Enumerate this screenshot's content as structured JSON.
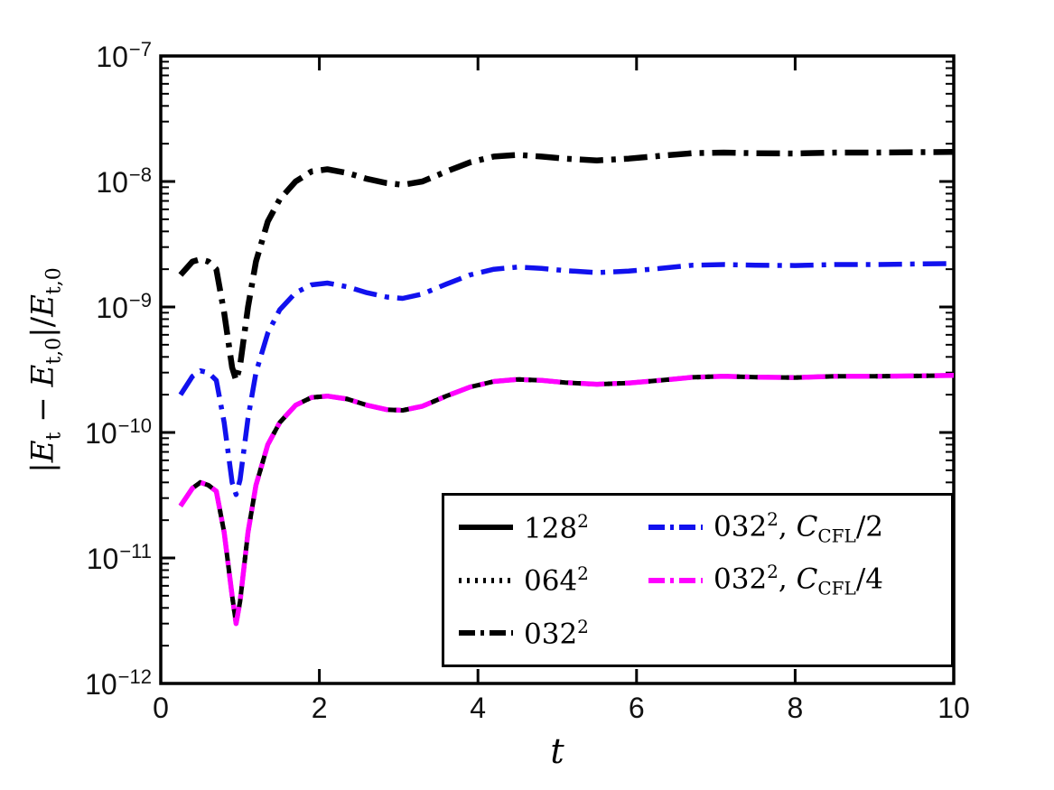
{
  "figure": {
    "background": "#ffffff",
    "frame_color": "#000000"
  },
  "chart_data": {
    "type": "line",
    "title": "",
    "xlabel": "t",
    "ylabel": "|E_t − E_t,0|/E_t,0",
    "ylabel_parts": [
      {
        "text": "|"
      },
      {
        "text": "E",
        "italic": true
      },
      {
        "text": "t",
        "sub": true
      },
      {
        "text": " − "
      },
      {
        "text": "E",
        "italic": true
      },
      {
        "text": "t,0",
        "sub": true
      },
      {
        "text": "|/"
      },
      {
        "text": "E",
        "italic": true
      },
      {
        "text": "t,0",
        "sub": true
      }
    ],
    "xlim": [
      0,
      10
    ],
    "ylog_lim": [
      -12,
      -7
    ],
    "xticks": [
      0,
      2,
      4,
      6,
      8,
      10
    ],
    "ytick_exponents": [
      -12,
      -11,
      -10,
      -9,
      -8,
      -7
    ],
    "ytick_base": "10",
    "grid": false,
    "legend_position": "south-east-inside",
    "x": [
      0.25,
      0.4,
      0.5,
      0.6,
      0.7,
      0.8,
      0.9,
      0.95,
      1.0,
      1.1,
      1.2,
      1.35,
      1.5,
      1.7,
      1.9,
      2.1,
      2.35,
      2.6,
      2.85,
      3.05,
      3.3,
      3.6,
      3.9,
      4.2,
      4.5,
      4.8,
      5.1,
      5.5,
      5.9,
      6.3,
      6.7,
      7.1,
      7.5,
      8.0,
      8.5,
      9.0,
      9.5,
      10.0
    ],
    "series": [
      {
        "id": "128sq",
        "name": "128^2",
        "color": "#000000",
        "line_style": "solid",
        "line_width": 5,
        "values": [
          2.6e-11,
          3.6e-11,
          4e-11,
          3.8e-11,
          3.4e-11,
          1.6e-11,
          5e-12,
          3e-12,
          4.5e-12,
          1.6e-11,
          3.8e-11,
          8e-11,
          1.2e-10,
          1.65e-10,
          1.9e-10,
          1.95e-10,
          1.85e-10,
          1.65e-10,
          1.52e-10,
          1.5e-10,
          1.62e-10,
          1.95e-10,
          2.3e-10,
          2.55e-10,
          2.65e-10,
          2.6e-10,
          2.5e-10,
          2.42e-10,
          2.48e-10,
          2.6e-10,
          2.75e-10,
          2.8e-10,
          2.76e-10,
          2.74e-10,
          2.8e-10,
          2.8e-10,
          2.82e-10,
          2.85e-10
        ]
      },
      {
        "id": "064sq",
        "name": "064^2",
        "color": "#000000",
        "line_style": "dotted",
        "line_width": 5,
        "values": [
          2.6e-11,
          3.6e-11,
          4e-11,
          3.8e-11,
          3.4e-11,
          1.6e-11,
          5e-12,
          3e-12,
          4.5e-12,
          1.6e-11,
          3.8e-11,
          8e-11,
          1.2e-10,
          1.65e-10,
          1.9e-10,
          1.95e-10,
          1.85e-10,
          1.65e-10,
          1.52e-10,
          1.5e-10,
          1.62e-10,
          1.95e-10,
          2.3e-10,
          2.55e-10,
          2.65e-10,
          2.6e-10,
          2.5e-10,
          2.42e-10,
          2.48e-10,
          2.6e-10,
          2.75e-10,
          2.8e-10,
          2.76e-10,
          2.74e-10,
          2.8e-10,
          2.8e-10,
          2.82e-10,
          2.85e-10
        ]
      },
      {
        "id": "032sq",
        "name": "032^2",
        "color": "#000000",
        "line_style": "dashdot",
        "line_width": 6.5,
        "values": [
          1.8e-09,
          2.3e-09,
          2.4e-09,
          2.3e-09,
          2e-09,
          9e-10,
          3.3e-10,
          2.6e-10,
          3.4e-10,
          1e-09,
          2.3e-09,
          4.8e-09,
          7.2e-09,
          1e-08,
          1.2e-08,
          1.25e-08,
          1.17e-08,
          1.05e-08,
          9.7e-09,
          9.4e-09,
          1e-08,
          1.2e-08,
          1.42e-08,
          1.58e-08,
          1.63e-08,
          1.58e-08,
          1.52e-08,
          1.47e-08,
          1.52e-08,
          1.6e-08,
          1.68e-08,
          1.7e-08,
          1.68e-08,
          1.67e-08,
          1.7e-08,
          1.7e-08,
          1.71e-08,
          1.72e-08
        ]
      },
      {
        "id": "032sq-cfl2",
        "name": "032^2, C_CFL/2",
        "color": "#1111ee",
        "line_style": "dashdot",
        "line_width": 5.5,
        "values": [
          2e-10,
          2.8e-10,
          3.1e-10,
          3e-10,
          2.6e-10,
          1.2e-10,
          4e-11,
          3.2e-11,
          4.2e-11,
          1.3e-10,
          3e-10,
          6.2e-10,
          9.5e-10,
          1.3e-09,
          1.5e-09,
          1.55e-09,
          1.45e-09,
          1.3e-09,
          1.2e-09,
          1.17e-09,
          1.27e-09,
          1.52e-09,
          1.8e-09,
          2e-09,
          2.08e-09,
          2.03e-09,
          1.95e-09,
          1.88e-09,
          1.93e-09,
          2.03e-09,
          2.15e-09,
          2.18e-09,
          2.15e-09,
          2.14e-09,
          2.18e-09,
          2.18e-09,
          2.2e-09,
          2.22e-09
        ]
      },
      {
        "id": "032sq-cfl4",
        "name": "032^2, C_CFL/4",
        "color": "#ff00ff",
        "line_style": "dashdot",
        "line_width": 5.5,
        "values": [
          2.6e-11,
          3.6e-11,
          4e-11,
          3.8e-11,
          3.4e-11,
          1.6e-11,
          5e-12,
          3e-12,
          4.5e-12,
          1.6e-11,
          3.8e-11,
          8e-11,
          1.2e-10,
          1.65e-10,
          1.9e-10,
          1.95e-10,
          1.85e-10,
          1.65e-10,
          1.52e-10,
          1.5e-10,
          1.62e-10,
          1.95e-10,
          2.3e-10,
          2.55e-10,
          2.65e-10,
          2.6e-10,
          2.5e-10,
          2.42e-10,
          2.48e-10,
          2.6e-10,
          2.75e-10,
          2.8e-10,
          2.76e-10,
          2.74e-10,
          2.8e-10,
          2.8e-10,
          2.82e-10,
          2.85e-10
        ]
      }
    ]
  },
  "legend": {
    "rows": 3,
    "columns": [
      [
        0,
        1,
        2
      ],
      [
        3,
        4
      ]
    ],
    "entries": [
      {
        "label": "128²",
        "series_index": 0,
        "parts": [
          {
            "text": "128"
          },
          {
            "text": "2",
            "sup": true
          }
        ]
      },
      {
        "label": "064²",
        "series_index": 1,
        "parts": [
          {
            "text": "064"
          },
          {
            "text": "2",
            "sup": true
          }
        ]
      },
      {
        "label": "032²",
        "series_index": 2,
        "parts": [
          {
            "text": "032"
          },
          {
            "text": "2",
            "sup": true
          }
        ]
      },
      {
        "label": "032², C_CFL/2",
        "series_index": 3,
        "parts": [
          {
            "text": "032"
          },
          {
            "text": "2",
            "sup": true
          },
          {
            "text": ", "
          },
          {
            "text": "C",
            "italic": true
          },
          {
            "text": "CFL",
            "sub": true
          },
          {
            "text": "/2"
          }
        ]
      },
      {
        "label": "032², C_CFL/4",
        "series_index": 4,
        "parts": [
          {
            "text": "032"
          },
          {
            "text": "2",
            "sup": true
          },
          {
            "text": ", "
          },
          {
            "text": "C",
            "italic": true
          },
          {
            "text": "CFL",
            "sub": true
          },
          {
            "text": "/4"
          }
        ]
      }
    ]
  }
}
